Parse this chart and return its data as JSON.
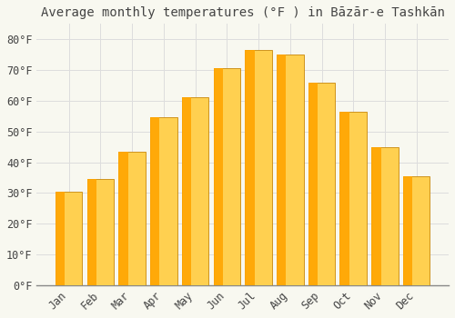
{
  "title": "Average monthly temperatures (°F ) in Bāzār-e Tashkān",
  "months": [
    "Jan",
    "Feb",
    "Mar",
    "Apr",
    "May",
    "Jun",
    "Jul",
    "Aug",
    "Sep",
    "Oct",
    "Nov",
    "Dec"
  ],
  "values": [
    30.5,
    34.5,
    43.5,
    54.5,
    61.0,
    70.5,
    76.5,
    75.0,
    66.0,
    56.5,
    45.0,
    35.5
  ],
  "bar_color_top": "#FFA500",
  "bar_color_bottom": "#FFD050",
  "bar_edge_color": "#C8880A",
  "background_color": "#F8F8F0",
  "grid_color": "#DDDDDD",
  "text_color": "#444444",
  "ylim": [
    0,
    85
  ],
  "yticks": [
    0,
    10,
    20,
    30,
    40,
    50,
    60,
    70,
    80
  ],
  "ytick_labels": [
    "0°F",
    "10°F",
    "20°F",
    "30°F",
    "40°F",
    "50°F",
    "60°F",
    "70°F",
    "80°F"
  ],
  "title_fontsize": 10,
  "tick_fontsize": 8.5,
  "bar_width": 0.85
}
